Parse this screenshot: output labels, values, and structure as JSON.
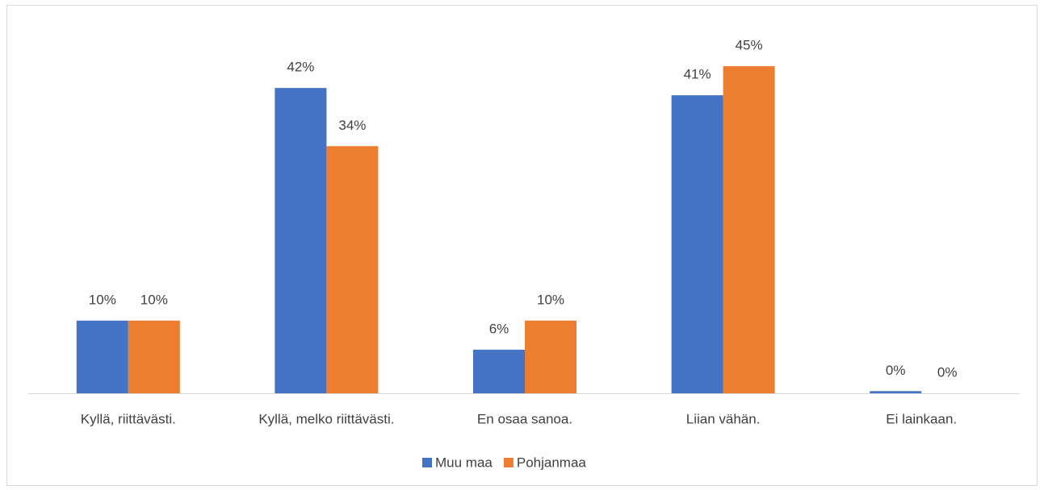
{
  "chart_data": {
    "type": "bar",
    "categories": [
      "Kyllä, riittävästi.",
      "Kyllä, melko riittävästi.",
      "En osaa sanoa.",
      "Liian vähän.",
      "Ei lainkaan."
    ],
    "series": [
      {
        "name": "Muu maa",
        "color": "#4472c4",
        "values": [
          10,
          42,
          6,
          41,
          0.3
        ],
        "value_labels": [
          "10%",
          "42%",
          "6%",
          "41%",
          "0%"
        ]
      },
      {
        "name": "Pohjanmaa",
        "color": "#ed7d31",
        "values": [
          10,
          34,
          10,
          45,
          0
        ],
        "value_labels": [
          "10%",
          "34%",
          "10%",
          "45%",
          "0%"
        ]
      }
    ],
    "legend": "bottom"
  }
}
